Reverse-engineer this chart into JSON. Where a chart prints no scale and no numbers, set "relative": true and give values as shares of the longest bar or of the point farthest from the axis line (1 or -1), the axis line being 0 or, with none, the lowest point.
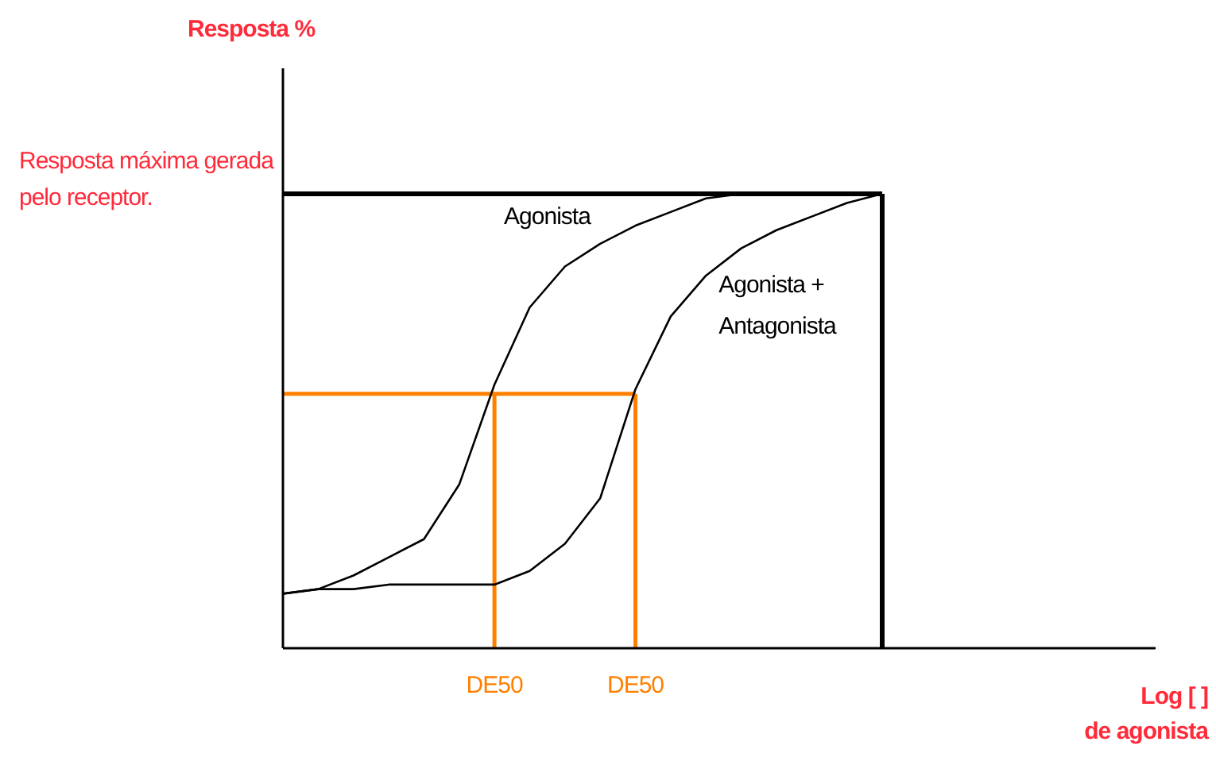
{
  "chart_data": {
    "type": "line",
    "relative": true,
    "annotations": [
      "Resposta %",
      "Log [ ]\nde agonista"
    ],
    "grid": false,
    "legend": false,
    "marker": "none",
    "line_style": "solid",
    "categories": [
      null,
      null,
      null,
      null,
      null,
      null,
      "DE50",
      null,
      null,
      null,
      "DE50",
      null,
      null,
      null,
      null,
      null,
      null,
      null
    ],
    "series": [
      {
        "name": "Agonista",
        "color": "#000000",
        "values": [
          0.12,
          0.13,
          0.16,
          0.2,
          0.24,
          0.36,
          0.58,
          0.75,
          0.84,
          0.89,
          0.93,
          0.96,
          0.99,
          1,
          null,
          null,
          null,
          null
        ]
      },
      {
        "name": "Agonista + Antagonista",
        "color": "#000000",
        "values": [
          0.12,
          0.13,
          0.13,
          0.14,
          0.14,
          0.14,
          0.14,
          0.17,
          0.23,
          0.33,
          0.57,
          0.73,
          0.82,
          0.88,
          0.92,
          0.95,
          0.98,
          1
        ]
      }
    ],
    "ref_lines": [
      {
        "axis": "y",
        "value": 1,
        "label": "Resposta máxima gerada\npelo receptor.",
        "color": "#000000"
      },
      {
        "axis": "y",
        "value": 0.56,
        "color": "#ff8000"
      }
    ]
  }
}
